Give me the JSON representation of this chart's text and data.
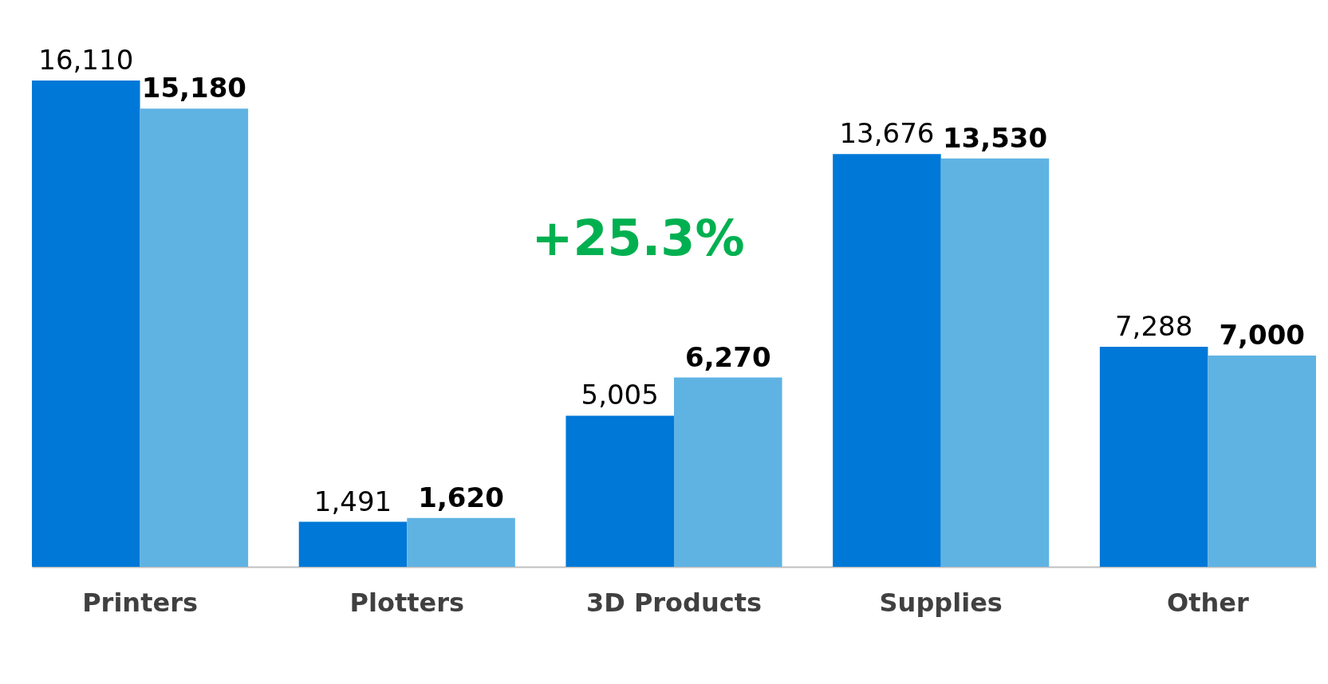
{
  "chart_data": {
    "type": "bar",
    "categories": [
      "Printers",
      "Plotters",
      "3D Products",
      "Supplies",
      "Other"
    ],
    "series": [
      {
        "color": "#0078d7",
        "values": [
          16110,
          1491,
          5005,
          13676,
          7288
        ],
        "value_labels": [
          "16,110",
          "1,491",
          "5,005",
          "13,676",
          "7,288"
        ]
      },
      {
        "color": "#5fb3e3",
        "values": [
          15180,
          1620,
          6270,
          13530,
          7000
        ],
        "value_labels": [
          "15,180",
          "1,620",
          "6,270",
          "13,530",
          "7,000"
        ]
      }
    ],
    "annotations": [
      "+25.3%"
    ]
  }
}
